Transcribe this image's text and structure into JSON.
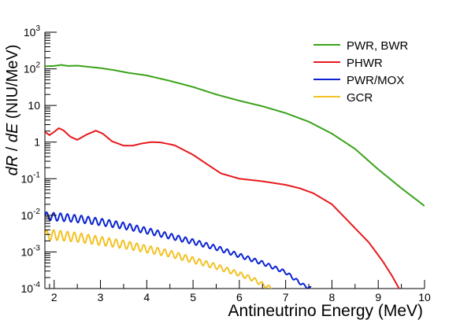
{
  "chart_data": {
    "type": "line",
    "title": "",
    "xlabel": "Antineutrino Energy (MeV)",
    "ylabel_parts": [
      "dR",
      " / ",
      "dE",
      " (NIU/MeV)"
    ],
    "xlim": [
      1.8,
      10
    ],
    "ylim": [
      0.0001,
      1000
    ],
    "yscale": "log",
    "x_ticks": [
      2,
      3,
      4,
      5,
      6,
      7,
      8,
      9,
      10
    ],
    "x_tick_labels": [
      "2",
      "3",
      "4",
      "5",
      "6",
      "7",
      "8",
      "9",
      "10"
    ],
    "y_ticks": [
      {
        "base": "10",
        "exp": "-4",
        "value": 0.0001
      },
      {
        "base": "10",
        "exp": "-3",
        "value": 0.001
      },
      {
        "base": "10",
        "exp": "-2",
        "value": 0.01
      },
      {
        "base": "10",
        "exp": "-1",
        "value": 0.1
      },
      {
        "base": "1",
        "exp": "",
        "value": 1
      },
      {
        "base": "10",
        "exp": "",
        "value": 10
      },
      {
        "base": "10",
        "exp": "2",
        "value": 100
      },
      {
        "base": "10",
        "exp": "3",
        "value": 1000
      }
    ],
    "grid": false,
    "legend_position": "top-right",
    "series": [
      {
        "name": "PWR, BWR",
        "color": "#3aa31a",
        "oscillation": {
          "amplitude": 0,
          "period": 0.15,
          "fade_end": 0
        },
        "points": [
          [
            1.8,
            118
          ],
          [
            2.0,
            120
          ],
          [
            2.15,
            128
          ],
          [
            2.3,
            120
          ],
          [
            2.5,
            122
          ],
          [
            2.7,
            115
          ],
          [
            3.0,
            105
          ],
          [
            3.3,
            92
          ],
          [
            3.6,
            78
          ],
          [
            4.0,
            66
          ],
          [
            4.5,
            47
          ],
          [
            5.0,
            32
          ],
          [
            5.5,
            20
          ],
          [
            6.0,
            13.5
          ],
          [
            6.5,
            9.5
          ],
          [
            7.0,
            6.2
          ],
          [
            7.5,
            3.6
          ],
          [
            8.0,
            1.7
          ],
          [
            8.5,
            0.65
          ],
          [
            9.0,
            0.18
          ],
          [
            9.5,
            0.055
          ],
          [
            10.0,
            0.018
          ]
        ]
      },
      {
        "name": "PHWR",
        "color": "#e8191d",
        "oscillation": {
          "amplitude": 0,
          "period": 0.15,
          "fade_end": 0
        },
        "points": [
          [
            1.8,
            1.9
          ],
          [
            1.9,
            1.55
          ],
          [
            2.0,
            1.9
          ],
          [
            2.1,
            2.4
          ],
          [
            2.2,
            2.1
          ],
          [
            2.35,
            1.4
          ],
          [
            2.5,
            1.15
          ],
          [
            2.7,
            1.6
          ],
          [
            2.9,
            2.05
          ],
          [
            3.05,
            1.7
          ],
          [
            3.25,
            1.05
          ],
          [
            3.5,
            0.8
          ],
          [
            3.7,
            0.8
          ],
          [
            3.9,
            0.92
          ],
          [
            4.1,
            1.0
          ],
          [
            4.3,
            0.98
          ],
          [
            4.6,
            0.82
          ],
          [
            5.0,
            0.45
          ],
          [
            5.3,
            0.25
          ],
          [
            5.6,
            0.14
          ],
          [
            6.0,
            0.1
          ],
          [
            6.5,
            0.085
          ],
          [
            7.0,
            0.068
          ],
          [
            7.3,
            0.055
          ],
          [
            7.6,
            0.04
          ],
          [
            8.0,
            0.02
          ],
          [
            8.4,
            0.006
          ],
          [
            8.8,
            0.0018
          ],
          [
            9.1,
            0.00055
          ],
          [
            9.3,
            0.00022
          ],
          [
            9.45,
            0.0001
          ]
        ]
      },
      {
        "name": "PWR/MOX",
        "color": "#0b23d3",
        "oscillation": {
          "amplitude": 0.11,
          "period": 0.15,
          "fade_end": 7.6
        },
        "points": [
          [
            1.8,
            0.0095
          ],
          [
            2.2,
            0.0088
          ],
          [
            2.6,
            0.0078
          ],
          [
            3.0,
            0.0066
          ],
          [
            3.5,
            0.0052
          ],
          [
            4.0,
            0.0038
          ],
          [
            4.5,
            0.0027
          ],
          [
            5.0,
            0.0019
          ],
          [
            5.5,
            0.0013
          ],
          [
            6.0,
            0.0008
          ],
          [
            6.5,
            0.0005
          ],
          [
            7.0,
            0.00028
          ],
          [
            7.2,
            0.00018
          ],
          [
            7.4,
            0.00012
          ],
          [
            7.55,
            0.0001
          ]
        ]
      },
      {
        "name": "GCR",
        "color": "#f2c224",
        "oscillation": {
          "amplitude": 0.14,
          "period": 0.15,
          "fade_end": 6.8
        },
        "points": [
          [
            1.8,
            0.0028
          ],
          [
            2.0,
            0.0029
          ],
          [
            2.5,
            0.0025
          ],
          [
            3.0,
            0.002
          ],
          [
            3.5,
            0.0016
          ],
          [
            4.0,
            0.0012
          ],
          [
            4.5,
            0.0009
          ],
          [
            5.0,
            0.0006
          ],
          [
            5.5,
            0.0004
          ],
          [
            6.0,
            0.00025
          ],
          [
            6.3,
            0.00018
          ],
          [
            6.5,
            0.00013
          ],
          [
            6.7,
            0.0001
          ]
        ]
      }
    ]
  }
}
